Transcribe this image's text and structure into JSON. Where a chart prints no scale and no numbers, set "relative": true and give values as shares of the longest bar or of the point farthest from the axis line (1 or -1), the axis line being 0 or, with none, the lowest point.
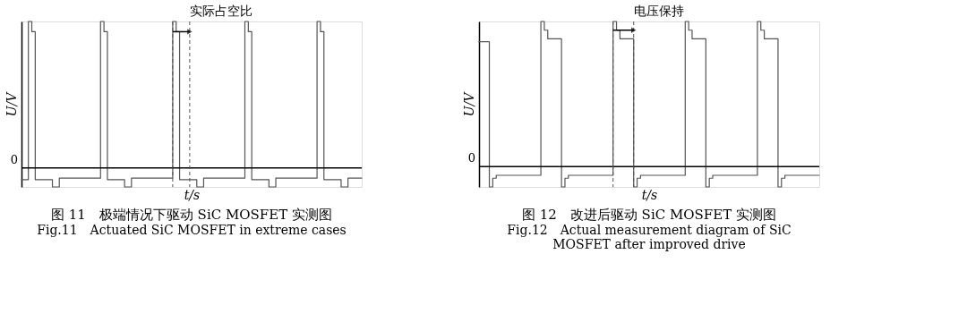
{
  "chart_data": [
    {
      "type": "step",
      "relative": true,
      "title": "图 11　极端情况下驱动 SiC MOSFET 实测图",
      "subtitle": "Fig.11　Actuated SiC MOSFET in extreme cases",
      "xlabel": "t/s",
      "ylabel": "U/V",
      "tick_labels": false,
      "grid": false,
      "legend": false,
      "line_style": "solid",
      "marker": "none",
      "categories": [
        null,
        null,
        null,
        null,
        null,
        null,
        null,
        null,
        null,
        null,
        null,
        null,
        null,
        null,
        null,
        null,
        null,
        null,
        null,
        null,
        null,
        null,
        null,
        null,
        null,
        null,
        null,
        null,
        null,
        null,
        null,
        null,
        null,
        null,
        null,
        null,
        null,
        null,
        null,
        null,
        null,
        null,
        null,
        null,
        null,
        null,
        null,
        null,
        null,
        null,
        null,
        null,
        null,
        null,
        null,
        null,
        null,
        null,
        null,
        null,
        null,
        null,
        null,
        null,
        null,
        null,
        null,
        null,
        null,
        null,
        null,
        null,
        null,
        null,
        null,
        null,
        null,
        null,
        null,
        null,
        null,
        null,
        null,
        null,
        null,
        null,
        null,
        null,
        null,
        null,
        null,
        null,
        null,
        null,
        null,
        null,
        null,
        null,
        null,
        null
      ],
      "series": [
        {
          "color": "#555555",
          "values": [
            -0.08,
            -0.08,
            1,
            0.93,
            -0.08,
            -0.08,
            -0.08,
            -0.08,
            -0.08,
            -0.13,
            -0.13,
            -0.07,
            -0.07,
            -0.07,
            -0.07,
            -0.07,
            -0.07,
            -0.07,
            -0.07,
            -0.07,
            -0.07,
            -0.07,
            -0.07,
            1,
            0.93,
            -0.08,
            -0.08,
            -0.08,
            -0.08,
            -0.08,
            -0.13,
            -0.13,
            -0.07,
            -0.07,
            -0.07,
            -0.07,
            -0.07,
            -0.07,
            -0.07,
            -0.07,
            -0.07,
            -0.07,
            -0.07,
            -0.07,
            1,
            0.93,
            -0.08,
            -0.08,
            -0.08,
            -0.08,
            -0.08,
            -0.13,
            -0.13,
            -0.07,
            -0.07,
            -0.07,
            -0.07,
            -0.07,
            -0.07,
            -0.07,
            -0.07,
            -0.07,
            -0.07,
            -0.07,
            -0.07,
            1,
            0.93,
            -0.08,
            -0.08,
            -0.08,
            -0.08,
            -0.08,
            -0.13,
            -0.13,
            -0.07,
            -0.07,
            -0.07,
            -0.07,
            -0.07,
            -0.07,
            -0.07,
            -0.07,
            -0.07,
            -0.07,
            -0.07,
            -0.07,
            1,
            0.93,
            -0.08,
            -0.08,
            -0.08,
            -0.08,
            -0.08,
            -0.13,
            -0.13,
            -0.07,
            -0.07,
            -0.07,
            -0.07,
            -0.07
          ]
        }
      ],
      "annotations": [
        "实际占空比",
        "0"
      ]
    },
    {
      "type": "step",
      "relative": true,
      "title": "图 12　改进后驱动 SiC MOSFET 实测图",
      "subtitle": "Fig.12　Actual measurement diagram of SiC MOSFET after improved drive",
      "xlabel": "t/s",
      "ylabel": "U/V",
      "tick_labels": false,
      "grid": false,
      "legend": false,
      "line_style": "solid",
      "marker": "none",
      "categories": [
        null,
        null,
        null,
        null,
        null,
        null,
        null,
        null,
        null,
        null,
        null,
        null,
        null,
        null,
        null,
        null,
        null,
        null,
        null,
        null,
        null,
        null,
        null,
        null,
        null,
        null,
        null,
        null,
        null,
        null,
        null,
        null,
        null,
        null,
        null,
        null,
        null,
        null,
        null,
        null,
        null,
        null,
        null,
        null,
        null,
        null,
        null,
        null,
        null,
        null,
        null,
        null,
        null,
        null,
        null,
        null,
        null,
        null,
        null,
        null,
        null,
        null,
        null,
        null,
        null,
        null,
        null,
        null,
        null,
        null,
        null,
        null,
        null,
        null,
        null,
        null,
        null,
        null,
        null,
        null,
        null,
        null,
        null,
        null,
        null,
        null,
        null,
        null,
        null,
        null,
        null,
        null,
        null,
        null,
        null,
        null,
        null,
        null,
        null,
        null
      ],
      "series": [
        {
          "color": "#555555",
          "values": [
            0.86,
            0.86,
            0.86,
            -0.14,
            -0.08,
            -0.06,
            -0.06,
            -0.06,
            -0.06,
            -0.06,
            -0.06,
            -0.06,
            -0.06,
            -0.06,
            -0.06,
            -0.06,
            -0.06,
            -0.06,
            1,
            0.94,
            0.88,
            0.88,
            0.88,
            0.88,
            -0.14,
            -0.08,
            -0.06,
            -0.06,
            -0.06,
            -0.06,
            -0.06,
            -0.06,
            -0.06,
            -0.06,
            -0.06,
            -0.06,
            -0.06,
            -0.06,
            -0.06,
            1,
            0.94,
            0.88,
            0.88,
            0.88,
            0.88,
            -0.14,
            -0.08,
            -0.06,
            -0.06,
            -0.06,
            -0.06,
            -0.06,
            -0.06,
            -0.06,
            -0.06,
            -0.06,
            -0.06,
            -0.06,
            -0.06,
            -0.06,
            1,
            0.94,
            0.88,
            0.88,
            0.88,
            0.88,
            -0.14,
            -0.08,
            -0.06,
            -0.06,
            -0.06,
            -0.06,
            -0.06,
            -0.06,
            -0.06,
            -0.06,
            -0.06,
            -0.06,
            -0.06,
            -0.06,
            -0.06,
            1,
            0.94,
            0.88,
            0.88,
            0.88,
            0.88,
            -0.14,
            -0.08,
            -0.06,
            -0.06,
            -0.06,
            -0.06,
            -0.06,
            -0.06,
            -0.06,
            -0.06,
            -0.06,
            -0.06,
            -0.06
          ]
        }
      ],
      "annotations": [
        "电压保持",
        "0"
      ]
    }
  ]
}
